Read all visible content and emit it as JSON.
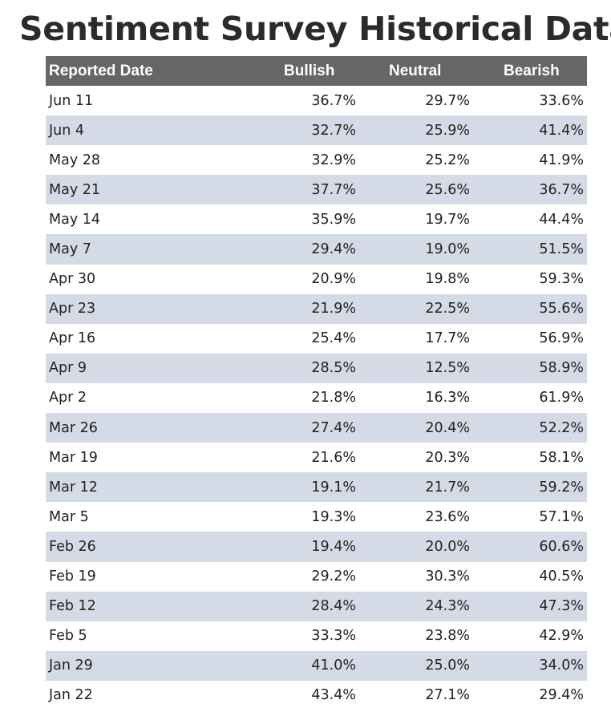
{
  "page": {
    "title": "Sentiment Survey Historical Data"
  },
  "table": {
    "headers": {
      "date": "Reported Date",
      "bullish": "Bullish",
      "neutral": "Neutral",
      "bearish": "Bearish"
    },
    "rows": [
      {
        "date": "Jun 11",
        "bullish": "36.7%",
        "neutral": "29.7%",
        "bearish": "33.6%"
      },
      {
        "date": "Jun 4",
        "bullish": "32.7%",
        "neutral": "25.9%",
        "bearish": "41.4%"
      },
      {
        "date": "May 28",
        "bullish": "32.9%",
        "neutral": "25.2%",
        "bearish": "41.9%"
      },
      {
        "date": "May 21",
        "bullish": "37.7%",
        "neutral": "25.6%",
        "bearish": "36.7%"
      },
      {
        "date": "May 14",
        "bullish": "35.9%",
        "neutral": "19.7%",
        "bearish": "44.4%"
      },
      {
        "date": "May 7",
        "bullish": "29.4%",
        "neutral": "19.0%",
        "bearish": "51.5%"
      },
      {
        "date": "Apr 30",
        "bullish": "20.9%",
        "neutral": "19.8%",
        "bearish": "59.3%"
      },
      {
        "date": "Apr 23",
        "bullish": "21.9%",
        "neutral": "22.5%",
        "bearish": "55.6%"
      },
      {
        "date": "Apr 16",
        "bullish": "25.4%",
        "neutral": "17.7%",
        "bearish": "56.9%"
      },
      {
        "date": "Apr 9",
        "bullish": "28.5%",
        "neutral": "12.5%",
        "bearish": "58.9%"
      },
      {
        "date": "Apr 2",
        "bullish": "21.8%",
        "neutral": "16.3%",
        "bearish": "61.9%"
      },
      {
        "date": "Mar 26",
        "bullish": "27.4%",
        "neutral": "20.4%",
        "bearish": "52.2%"
      },
      {
        "date": "Mar 19",
        "bullish": "21.6%",
        "neutral": "20.3%",
        "bearish": "58.1%"
      },
      {
        "date": "Mar 12",
        "bullish": "19.1%",
        "neutral": "21.7%",
        "bearish": "59.2%"
      },
      {
        "date": "Mar 5",
        "bullish": "19.3%",
        "neutral": "23.6%",
        "bearish": "57.1%"
      },
      {
        "date": "Feb 26",
        "bullish": "19.4%",
        "neutral": "20.0%",
        "bearish": "60.6%"
      },
      {
        "date": "Feb 19",
        "bullish": "29.2%",
        "neutral": "30.3%",
        "bearish": "40.5%"
      },
      {
        "date": "Feb 12",
        "bullish": "28.4%",
        "neutral": "24.3%",
        "bearish": "47.3%"
      },
      {
        "date": "Feb 5",
        "bullish": "33.3%",
        "neutral": "23.8%",
        "bearish": "42.9%"
      },
      {
        "date": "Jan 29",
        "bullish": "41.0%",
        "neutral": "25.0%",
        "bearish": "34.0%"
      },
      {
        "date": "Jan 22",
        "bullish": "43.4%",
        "neutral": "27.1%",
        "bearish": "29.4%"
      }
    ]
  },
  "colors": {
    "header_background": "#666666",
    "header_text": "#ffffff",
    "stripe_background": "#d5dbe6",
    "row_background": "#ffffff",
    "title_text": "#2b2b2b"
  }
}
